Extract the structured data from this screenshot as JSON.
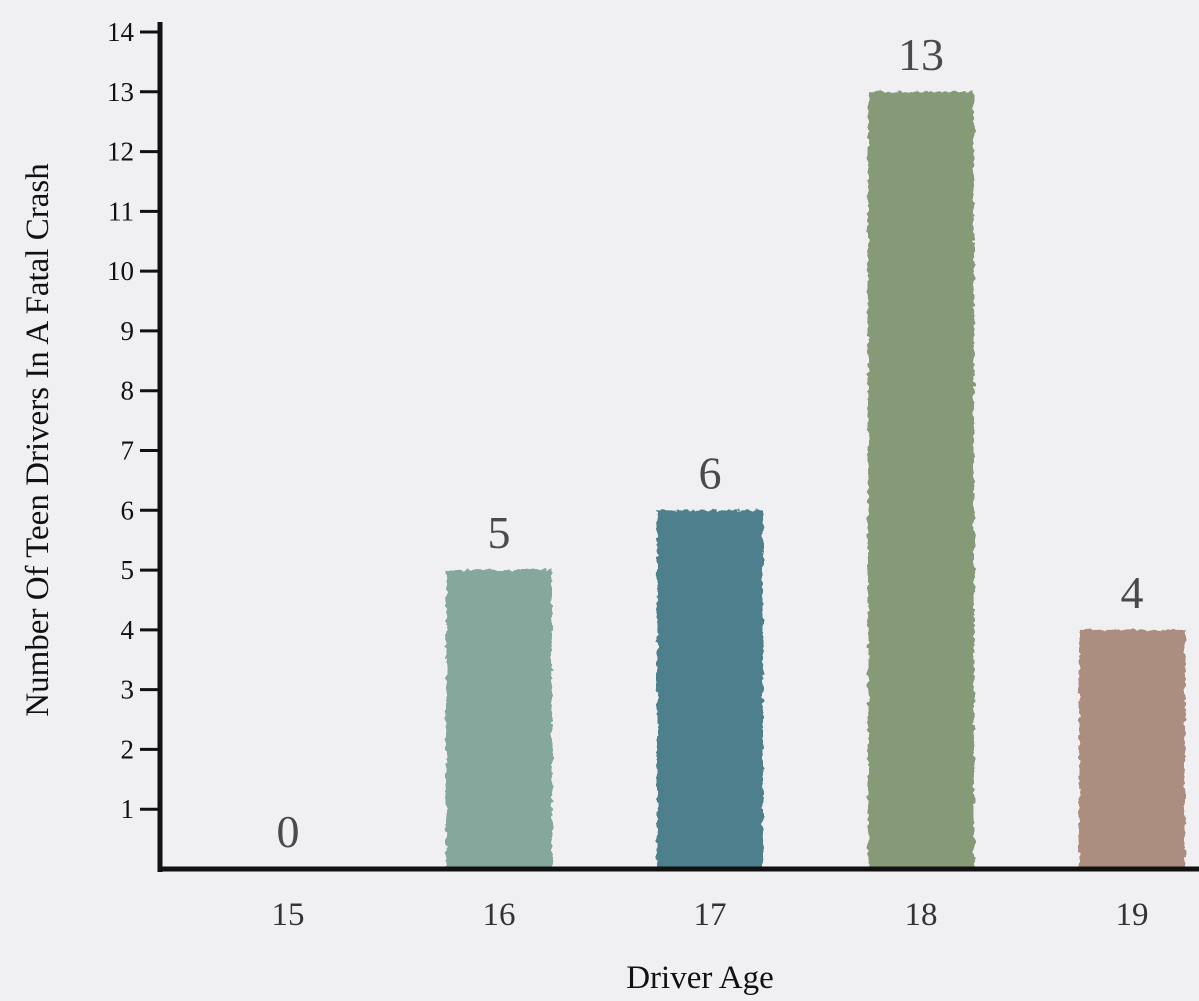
{
  "chart_data": {
    "type": "bar",
    "xlabel": "Driver Age",
    "ylabel": "Number Of Teen Drivers In A Fatal Crash",
    "categories": [
      "15",
      "16",
      "17",
      "18",
      "19"
    ],
    "values": [
      0,
      5,
      6,
      13,
      4
    ],
    "data_labels": [
      "0",
      "5",
      "6",
      "13",
      "4"
    ],
    "y_ticks": [
      "1",
      "2",
      "3",
      "4",
      "5",
      "6",
      "7",
      "8",
      "9",
      "10",
      "11",
      "12",
      "13",
      "14"
    ],
    "ylim": [
      0,
      14
    ],
    "grid": false,
    "legend": "none",
    "colors": {
      "background": "#f0f0f2",
      "axis": "#111111",
      "bars": [
        "#86a89c",
        "#86a89c",
        "#4e7f8d",
        "#879a78",
        "#ab8e80"
      ]
    }
  }
}
